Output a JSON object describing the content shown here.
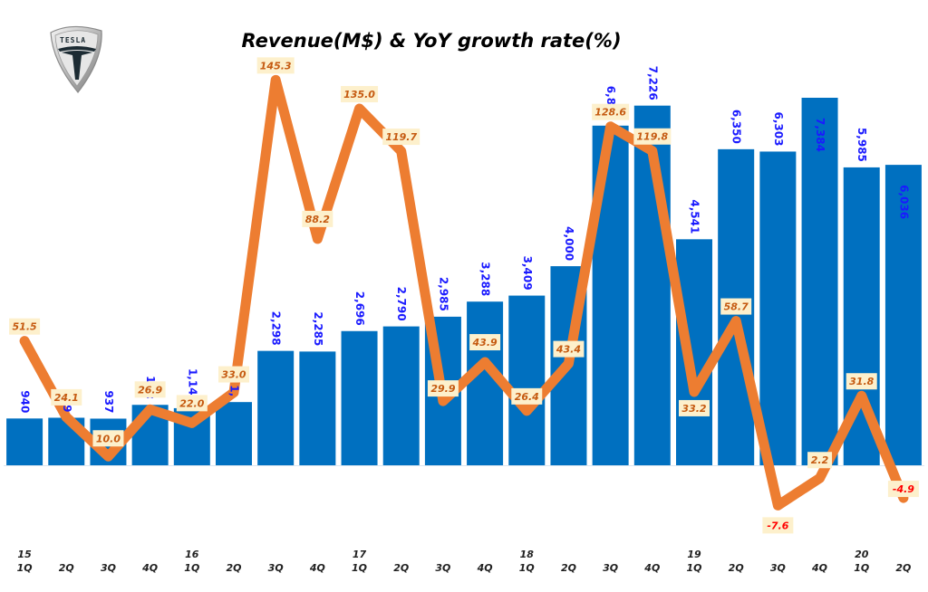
{
  "chart_data": {
    "type": "bar",
    "title": "Revenue(M$) & YoY growth rate(%)",
    "xlabel": "",
    "ylabel": "",
    "logo": "tesla-logo",
    "categories": [
      "1Q15",
      "2Q15",
      "3Q15",
      "4Q15",
      "1Q16",
      "2Q16",
      "3Q16",
      "4Q16",
      "1Q17",
      "2Q17",
      "3Q17",
      "4Q17",
      "1Q18",
      "2Q18",
      "3Q18",
      "4Q18",
      "1Q19",
      "2Q19",
      "3Q19",
      "4Q19",
      "1Q20",
      "2Q20"
    ],
    "tick_labels": {
      "quarters": [
        "1Q",
        "2Q",
        "3Q",
        "4Q",
        "1Q",
        "2Q",
        "3Q",
        "4Q",
        "1Q",
        "2Q",
        "3Q",
        "4Q",
        "1Q",
        "2Q",
        "3Q",
        "4Q",
        "1Q",
        "2Q",
        "3Q",
        "4Q",
        "1Q",
        "2Q"
      ],
      "years": [
        "15",
        "",
        "",
        "",
        "16",
        "",
        "",
        "",
        "17",
        "",
        "",
        "",
        "18",
        "",
        "",
        "",
        "19",
        "",
        "",
        "",
        "20",
        ""
      ]
    },
    "series": [
      {
        "name": "Revenue (M$)",
        "type": "bar",
        "color": "#0070c0",
        "label_color": "#1a1aff",
        "values": [
          940,
          955,
          937,
          1214,
          1147,
          1270,
          2298,
          2285,
          2696,
          2790,
          2985,
          3288,
          3409,
          4000,
          6824,
          7226,
          4541,
          6350,
          6303,
          7384,
          5985,
          6036
        ],
        "labels": [
          "940",
          "9",
          "937",
          "1,2:",
          "1,147",
          "1,",
          "2,298",
          "2,285",
          "2,696",
          "2,790",
          "2,985",
          "3,288",
          "3,409",
          "4,000",
          "6,824",
          "7,226",
          "4,541",
          "6,350",
          "6,303",
          "7,384",
          "5,985",
          "6,036"
        ]
      },
      {
        "name": "YoY growth rate (%)",
        "type": "line",
        "color": "#ed7d31",
        "label_bg": "#fdf0cc",
        "label_color": "#c55a11",
        "negative_label_color": "#ff0000",
        "values": [
          51.5,
          24.1,
          10.0,
          26.9,
          22.0,
          33.0,
          145.3,
          88.2,
          135.0,
          119.7,
          29.9,
          43.9,
          26.4,
          43.4,
          128.6,
          119.8,
          33.2,
          58.7,
          -7.6,
          2.2,
          31.8,
          -4.9
        ],
        "labels": [
          "51.5",
          "24.1",
          "10.0",
          "26.9",
          "22.0",
          "33.0",
          "145.3",
          "88.2",
          "135.0",
          "119.7",
          "29.9",
          "43.9",
          "26.4",
          "43.4",
          "128.6",
          "119.8",
          "33.2",
          "58.7",
          "-7.6",
          "2.2",
          "31.8",
          "-4.9"
        ]
      }
    ],
    "ylim_bar": [
      0,
      7500
    ],
    "ylim_line": [
      -15,
      150
    ],
    "grid": false,
    "legend": "none"
  }
}
